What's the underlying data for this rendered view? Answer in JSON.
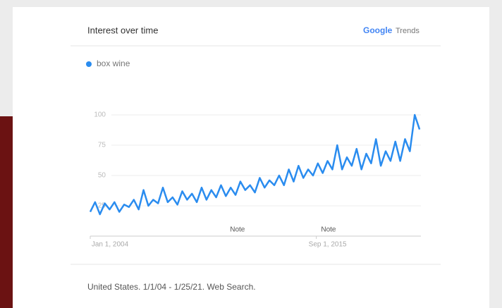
{
  "header": {
    "title": "Interest over time",
    "brand": "Google",
    "product": "Trends"
  },
  "chart_data": {
    "type": "line",
    "series": [
      {
        "name": "box wine",
        "color": "#2a8cef",
        "values": [
          20,
          28,
          18,
          27,
          22,
          28,
          20,
          26,
          24,
          30,
          22,
          38,
          25,
          30,
          27,
          40,
          28,
          32,
          26,
          37,
          30,
          35,
          28,
          40,
          30,
          38,
          32,
          42,
          33,
          40,
          34,
          45,
          38,
          42,
          36,
          48,
          40,
          46,
          42,
          50,
          42,
          55,
          45,
          58,
          48,
          55,
          50,
          60,
          52,
          62,
          55,
          75,
          55,
          65,
          58,
          72,
          55,
          68,
          60,
          80,
          58,
          70,
          62,
          78,
          62,
          80,
          70,
          100,
          88
        ]
      }
    ],
    "x": [
      2004,
      2004.25,
      2004.5,
      2004.75,
      2005,
      2005.25,
      2005.5,
      2005.75,
      2006,
      2006.25,
      2006.5,
      2006.75,
      2007,
      2007.25,
      2007.5,
      2007.75,
      2008,
      2008.25,
      2008.5,
      2008.75,
      2009,
      2009.25,
      2009.5,
      2009.75,
      2010,
      2010.25,
      2010.5,
      2010.75,
      2011,
      2011.25,
      2011.5,
      2011.75,
      2012,
      2012.25,
      2012.5,
      2012.75,
      2013,
      2013.25,
      2013.5,
      2013.75,
      2014,
      2014.25,
      2014.5,
      2014.75,
      2015,
      2015.25,
      2015.5,
      2015.75,
      2016,
      2016.25,
      2016.5,
      2016.75,
      2017,
      2017.25,
      2017.5,
      2017.75,
      2018,
      2018.25,
      2018.5,
      2018.75,
      2019,
      2019.25,
      2019.5,
      2019.75,
      2020,
      2020.25,
      2020.5,
      2020.75,
      2021
    ],
    "xlim": [
      2004,
      2021.07
    ],
    "xticks": [
      {
        "value": 2004,
        "label": "Jan 1, 2004"
      },
      {
        "value": 2015.67,
        "label": "Sep 1, 2015"
      }
    ],
    "ylim": [
      0,
      100
    ],
    "yticks": [
      25,
      50,
      75,
      100
    ],
    "grid": true,
    "annotations": [
      {
        "x": 2011.6,
        "text": "Note"
      },
      {
        "x": 2016.3,
        "text": "Note"
      }
    ]
  },
  "footer": "United States. 1/1/04 - 1/25/21. Web Search."
}
